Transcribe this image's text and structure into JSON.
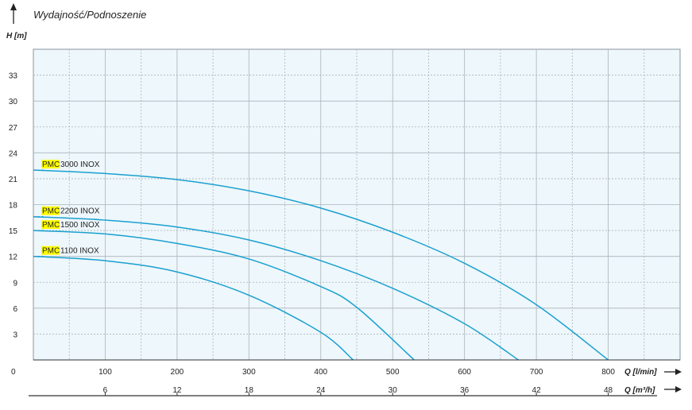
{
  "chart_data": {
    "type": "line",
    "title": "Wydajność/Podnoszenie",
    "ylabel": "H [m]",
    "xlabel": "Q [l/min]",
    "x2label": "Q [m³/h]",
    "xlim": [
      0,
      900
    ],
    "ylim": [
      0,
      36
    ],
    "y_ticks": [
      3,
      6,
      9,
      12,
      15,
      18,
      21,
      24,
      27,
      30,
      33
    ],
    "y_tick_labels": [
      "3",
      "6",
      "9",
      "12",
      "15",
      "18",
      "21",
      "24",
      "27",
      "30",
      "33"
    ],
    "x_ticks": [
      100,
      200,
      300,
      400,
      500,
      600,
      700,
      800
    ],
    "x_tick_labels": [
      "100",
      "200",
      "300",
      "400",
      "500",
      "600",
      "700",
      "800"
    ],
    "x2_ticks": [
      100,
      200,
      300,
      400,
      500,
      600,
      700,
      800
    ],
    "x2_tick_labels": [
      "6",
      "12",
      "18",
      "24",
      "30",
      "36",
      "42",
      "48"
    ],
    "origin_label": "0",
    "grid": true,
    "colors": {
      "line": "#1aa0d0",
      "plot_bg": "#eef7fb",
      "grid": "#a9b4bb",
      "highlight": "#ffff00"
    },
    "series": [
      {
        "prefix": "PMC",
        "name": "3000 INOX",
        "x": [
          0,
          100,
          200,
          300,
          400,
          500,
          600,
          700,
          800
        ],
        "y": [
          22,
          21.6,
          20.9,
          19.6,
          17.6,
          14.8,
          11.2,
          6.4,
          0
        ]
      },
      {
        "prefix": "PMC",
        "name": "2200 INOX",
        "x": [
          0,
          100,
          200,
          300,
          400,
          500,
          600,
          675
        ],
        "y": [
          16.6,
          16.2,
          15.4,
          13.9,
          11.5,
          8.3,
          4.2,
          0
        ]
      },
      {
        "prefix": "PMC",
        "name": "1500 INOX",
        "x": [
          0,
          100,
          200,
          300,
          400,
          450,
          530
        ],
        "y": [
          15,
          14.6,
          13.5,
          11.7,
          8.5,
          6.1,
          0
        ]
      },
      {
        "prefix": "PMC",
        "name": "1100 INOX",
        "x": [
          0,
          100,
          200,
          300,
          400,
          445
        ],
        "y": [
          12,
          11.5,
          10.2,
          7.5,
          3.2,
          0
        ]
      }
    ]
  }
}
